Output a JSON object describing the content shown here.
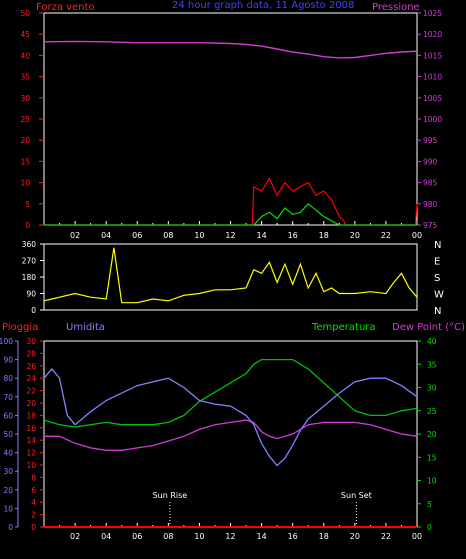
{
  "chart_data": [
    {
      "id": "wind-pressure",
      "type": "line",
      "title": "24 hour graph data, 11 Agosto 2008",
      "left_axis_title": "Forza vento",
      "right_axis_title": "Pressione",
      "left_ticks": [
        "0",
        "5",
        "10",
        "15",
        "20",
        "25",
        "30",
        "35",
        "40",
        "45",
        "50"
      ],
      "right_ticks": [
        "975",
        "980",
        "985",
        "990",
        "995",
        "1000",
        "1005",
        "1010",
        "1015",
        "1020",
        "1025"
      ],
      "left_range": [
        0,
        50
      ],
      "right_range": [
        975,
        1025
      ],
      "x_ticks": [
        "02",
        "04",
        "06",
        "08",
        "10",
        "12",
        "14",
        "16",
        "18",
        "20",
        "22",
        "00"
      ],
      "x_range": [
        0,
        24
      ],
      "series": [
        {
          "key": "pressione",
          "color": "#d23cd2",
          "x": [
            0,
            2,
            4,
            6,
            8,
            10,
            12,
            13,
            14,
            15,
            16,
            17,
            18,
            19,
            20,
            21,
            22,
            23,
            24
          ],
          "y": [
            1018.2,
            1018.3,
            1018.2,
            1018,
            1018,
            1018,
            1017.8,
            1017.6,
            1017.2,
            1016.5,
            1015.8,
            1015.3,
            1014.7,
            1014.4,
            1014.5,
            1015,
            1015.5,
            1015.8,
            1016
          ]
        },
        {
          "key": "raffica",
          "color": "#ff0000",
          "x": [
            0,
            13.4,
            13.5,
            14,
            14.5,
            15,
            15.5,
            16,
            16.5,
            17,
            17.5,
            18,
            18.5,
            19,
            19.3,
            19.4,
            23.9,
            24
          ],
          "y": [
            0,
            0,
            9,
            8,
            11,
            7,
            10,
            8,
            9,
            10,
            7,
            8,
            6,
            2,
            1,
            0,
            0,
            5
          ]
        },
        {
          "key": "vento",
          "color": "#00e000",
          "x": [
            0,
            13.5,
            14,
            14.5,
            15,
            15.5,
            16,
            16.5,
            17,
            17.5,
            18,
            18.5,
            19,
            24
          ],
          "y": [
            0,
            0,
            2,
            3,
            1.5,
            4,
            2.5,
            3,
            5,
            3.5,
            2,
            1,
            0,
            0
          ]
        }
      ]
    },
    {
      "id": "wind-direction",
      "type": "line",
      "left_ticks": [
        "0",
        "90",
        "180",
        "270",
        "360"
      ],
      "right_labels": [
        "N",
        "W",
        "S",
        "E",
        "N"
      ],
      "y_range": [
        0,
        360
      ],
      "x_ticks": [
        "02",
        "04",
        "06",
        "08",
        "10",
        "12",
        "14",
        "16",
        "18",
        "20",
        "22",
        "00"
      ],
      "x_range": [
        0,
        24
      ],
      "series": [
        {
          "key": "direzione",
          "color": "#ffff00",
          "x": [
            0,
            0.5,
            1,
            2,
            3,
            4,
            4.5,
            5,
            6,
            7,
            8,
            9,
            10,
            11,
            12,
            13,
            13.5,
            14,
            14.5,
            15,
            15.5,
            16,
            16.5,
            17,
            17.5,
            18,
            18.5,
            19,
            20,
            21,
            22,
            22.5,
            23,
            23.5,
            24
          ],
          "y": [
            50,
            60,
            70,
            90,
            70,
            60,
            340,
            40,
            40,
            60,
            50,
            80,
            90,
            110,
            110,
            120,
            220,
            200,
            260,
            150,
            250,
            140,
            250,
            120,
            200,
            100,
            120,
            90,
            90,
            100,
            90,
            150,
            200,
            120,
            70
          ]
        }
      ]
    },
    {
      "id": "temp-humidity",
      "type": "line",
      "left_title_rain": "Pioggia",
      "left_title_humidity": "Umidita",
      "right_title_temp": "Temperatura",
      "right_title_dew": "Dew Point (°C)",
      "humidity_ticks": [
        "0",
        "10",
        "20",
        "30",
        "40",
        "50",
        "60",
        "70",
        "80",
        "90",
        "100"
      ],
      "rain_ticks": [
        "0",
        "2",
        "4",
        "6",
        "8",
        "10",
        "12",
        "14",
        "16",
        "18",
        "20",
        "22",
        "24",
        "26",
        "28",
        "30"
      ],
      "temp_ticks": [
        "0",
        "5",
        "10",
        "15",
        "20",
        "25",
        "30",
        "35",
        "40"
      ],
      "humidity_range": [
        0,
        100
      ],
      "temp_range": [
        0,
        40
      ],
      "x_ticks": [
        "02",
        "04",
        "06",
        "08",
        "10",
        "12",
        "14",
        "16",
        "18",
        "20",
        "22",
        "00"
      ],
      "x_range": [
        0,
        24
      ],
      "annotations": [
        {
          "label": "Sun Rise",
          "x": 8.1
        },
        {
          "label": "Sun Set",
          "x": 20.1
        }
      ],
      "series": [
        {
          "key": "umidita",
          "color": "#8080ff",
          "x": [
            0,
            0.5,
            1,
            1.5,
            2,
            3,
            4,
            5,
            6,
            7,
            8,
            9,
            10,
            11,
            12,
            13,
            13.5,
            14,
            14.5,
            15,
            15.5,
            16,
            16.5,
            17,
            18,
            19,
            20,
            21,
            22,
            23,
            24
          ],
          "y": [
            80,
            85,
            80,
            60,
            55,
            62,
            68,
            72,
            76,
            78,
            80,
            75,
            68,
            66,
            65,
            60,
            55,
            45,
            38,
            33,
            37,
            44,
            52,
            58,
            65,
            72,
            78,
            80,
            80,
            76,
            70
          ]
        },
        {
          "key": "temperatura",
          "color": "#00c000",
          "x": [
            0,
            0.5,
            1,
            2,
            3,
            4,
            5,
            6,
            7,
            8,
            9,
            10,
            11,
            12,
            13,
            13.5,
            14,
            15,
            16,
            17,
            18,
            19,
            20,
            21,
            22,
            23,
            24
          ],
          "y": [
            23,
            22.5,
            22,
            21.5,
            22,
            22.5,
            22,
            22,
            22,
            22.5,
            24,
            27,
            29,
            31,
            33,
            35,
            36,
            36,
            36,
            34,
            31,
            28,
            25,
            24,
            24,
            25,
            25.5
          ]
        },
        {
          "key": "dewpoint",
          "color": "#d23cd2",
          "x": [
            0,
            1,
            2,
            3,
            4,
            5,
            6,
            7,
            8,
            9,
            10,
            11,
            12,
            13,
            13.5,
            14,
            14.5,
            15,
            15.5,
            16,
            16.5,
            17,
            18,
            19,
            20,
            21,
            22,
            23,
            24
          ],
          "y": [
            19.5,
            19.5,
            18,
            17,
            16.5,
            16.5,
            17,
            17.5,
            18.5,
            19.5,
            21,
            22,
            22.5,
            23,
            22.5,
            20.5,
            19.5,
            19,
            19.5,
            20,
            21,
            22,
            22.5,
            22.5,
            22.5,
            22,
            21,
            20,
            19.5
          ]
        },
        {
          "key": "pioggia",
          "color": "#ff0000",
          "x": [
            0,
            24
          ],
          "y": [
            0,
            0
          ]
        }
      ]
    }
  ]
}
